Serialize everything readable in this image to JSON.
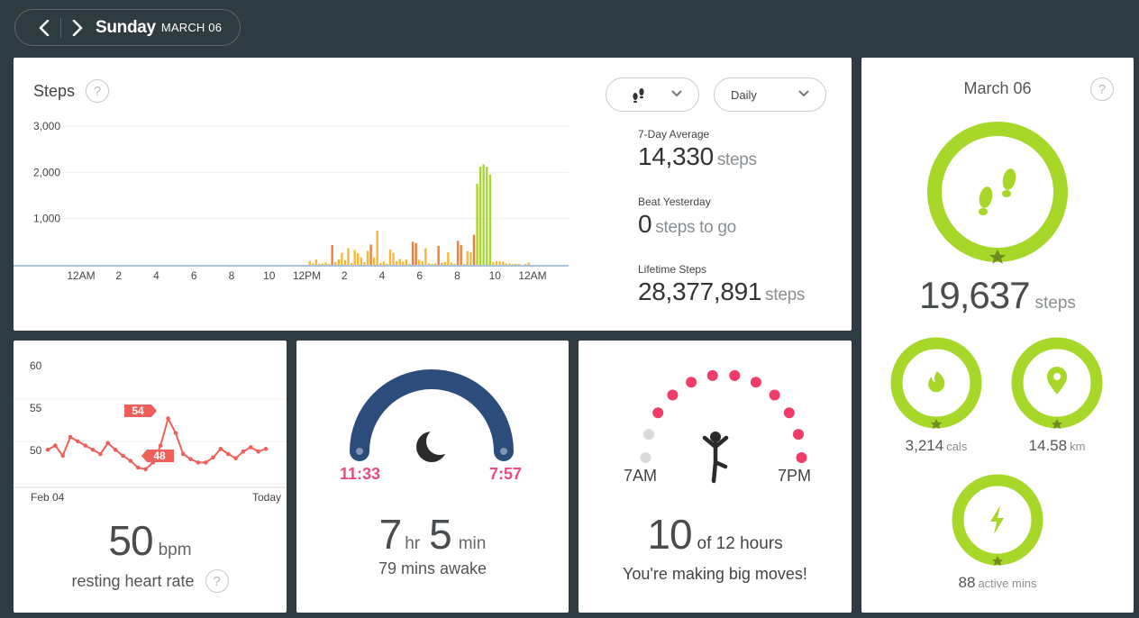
{
  "nav": {
    "day": "Sunday",
    "date": "MARCH 06"
  },
  "steps": {
    "title": "Steps",
    "help": "?",
    "range_label": "Daily",
    "stats": [
      {
        "label": "7-Day Average",
        "value": "14,330",
        "unit": "steps"
      },
      {
        "label": "Beat Yesterday",
        "value": "0",
        "unit": "steps to go"
      },
      {
        "label": "Lifetime Steps",
        "value": "28,377,891",
        "unit": "steps"
      }
    ]
  },
  "chart_data": {
    "type": "bar",
    "title": "Steps",
    "ylim": [
      0,
      3000
    ],
    "yticks": [
      "3,000",
      "2,000",
      "1,000"
    ],
    "ytick_values": [
      3000,
      2000,
      1000
    ],
    "xtick_labels": [
      "12AM",
      "2",
      "4",
      "6",
      "8",
      "10",
      "12PM",
      "2",
      "4",
      "6",
      "8",
      "10",
      "12AM"
    ],
    "interval_minutes": 15,
    "values": [
      0,
      0,
      0,
      0,
      0,
      0,
      0,
      0,
      0,
      0,
      0,
      0,
      0,
      0,
      0,
      0,
      0,
      0,
      0,
      0,
      0,
      0,
      0,
      0,
      0,
      0,
      0,
      0,
      0,
      0,
      0,
      0,
      0,
      0,
      0,
      0,
      0,
      0,
      0,
      0,
      0,
      0,
      0,
      0,
      0,
      0,
      0,
      0,
      0,
      0,
      0,
      0,
      0,
      0,
      0,
      0,
      0,
      0,
      0,
      0,
      0,
      0,
      0,
      0,
      0,
      0,
      0,
      0,
      0,
      0,
      0,
      0,
      0,
      0,
      0,
      0,
      0,
      0,
      80,
      30,
      120,
      20,
      30,
      50,
      20,
      430,
      60,
      120,
      260,
      100,
      360,
      40,
      320,
      250,
      160,
      60,
      300,
      440,
      160,
      740,
      40,
      70,
      20,
      330,
      260,
      80,
      130,
      70,
      120,
      20,
      500,
      470,
      110,
      80,
      360,
      30,
      20,
      30,
      410,
      40,
      60,
      270,
      50,
      20,
      520,
      430,
      20,
      300,
      270,
      650,
      1750,
      2120,
      2170,
      2120,
      1950,
      60,
      80,
      80,
      70,
      30,
      30,
      20,
      20,
      20,
      0,
      20,
      50,
      0,
      0,
      0,
      0,
      0,
      0,
      0,
      0,
      0,
      0,
      0,
      0,
      0
    ],
    "colors": {
      "low": "#f7b733",
      "mid": "#ef7d39",
      "active": "#a6d729"
    }
  },
  "heart": {
    "yticks": [
      "60",
      "55",
      "50"
    ],
    "xstart": "Feb 04",
    "xend": "Today",
    "tag_high": "54",
    "tag_low": "48",
    "value": "50",
    "unit": "bpm",
    "label": "resting heart rate",
    "series": [
      50.5,
      51.0,
      49.8,
      52.0,
      51.5,
      51.0,
      50.5,
      50.0,
      51.3,
      50.5,
      49.8,
      49.2,
      48.4,
      48.2,
      49.0,
      51.0,
      54.2,
      52.5,
      50.0,
      49.4,
      49.0,
      49.0,
      49.6,
      50.6,
      50.0,
      49.5,
      50.3,
      50.8,
      50.3,
      50.6
    ]
  },
  "sleep": {
    "start": "11:33",
    "end": "7:57",
    "hours": "7",
    "hr_unit": "hr",
    "minutes": "5",
    "min_unit": "min",
    "awake": "79 mins awake"
  },
  "hourly": {
    "start": "7AM",
    "end": "7PM",
    "count": "10",
    "of_text": "of 12 hours",
    "message": "You're making big moves!",
    "hours_met": 10,
    "hours_total": 12
  },
  "summary": {
    "date": "March 06",
    "steps_value": "19,637",
    "steps_unit": "steps",
    "cals_value": "3,214",
    "cals_unit": "cals",
    "dist_value": "14.58",
    "dist_unit": "km",
    "active_value": "88",
    "active_unit": "active mins"
  },
  "colors": {
    "background": "#2e3b40",
    "green": "#a6d729",
    "heart": "#f0605a",
    "sleep": "#2c4c7c",
    "pink": "#e84a83"
  }
}
